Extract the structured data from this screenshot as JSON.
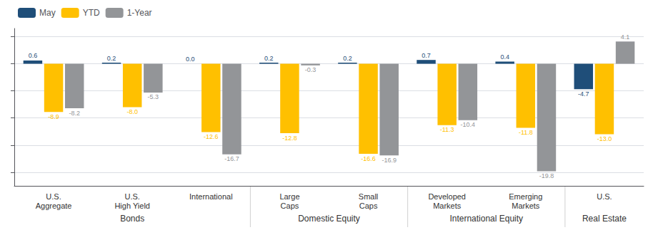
{
  "chart_data": {
    "type": "bar",
    "categories": [
      "U.S.\nAggregate",
      "U.S.\nHigh Yield",
      "International",
      "Large\nCaps",
      "Small\nCaps",
      "Developed\nMarkets",
      "Emerging\nMarkets",
      "U.S."
    ],
    "series": [
      {
        "name": "May",
        "color": "#1f4e79",
        "values": [
          0.6,
          0.2,
          0.0,
          0.2,
          0.2,
          0.7,
          0.4,
          -4.7
        ],
        "value_labels": [
          "0.6",
          "0.2",
          "0.0",
          "0.2",
          "0.2",
          "0.7",
          "0.4",
          "-4.7"
        ]
      },
      {
        "name": "YTD",
        "color": "#ffc000",
        "values": [
          -8.9,
          -8.0,
          -12.6,
          -12.8,
          -16.6,
          -11.3,
          -11.8,
          -13.0
        ],
        "value_labels": [
          "-8.9",
          "-8.0",
          "-12.6",
          "-12.8",
          "-16.6",
          "-11.3",
          "-11.8",
          "-13.0"
        ]
      },
      {
        "name": "1-Year",
        "color": "#939598",
        "values": [
          -8.2,
          -5.3,
          -16.7,
          -0.3,
          -16.9,
          -10.4,
          -19.8,
          4.1
        ]
      }
    ],
    "groups": [
      {
        "label": "Bonds",
        "count": 3
      },
      {
        "label": "Domestic Equity",
        "count": 2
      },
      {
        "label": "International Equity",
        "count": 2
      },
      {
        "label": "Real Estate",
        "count": 1
      }
    ],
    "ylim": [
      -22.5,
      6.5
    ],
    "yticks": [
      -20,
      -15,
      -10,
      -5,
      0,
      5
    ],
    "grid": true,
    "legend": "upper left",
    "data_labels": true,
    "tick_labels": "x"
  }
}
